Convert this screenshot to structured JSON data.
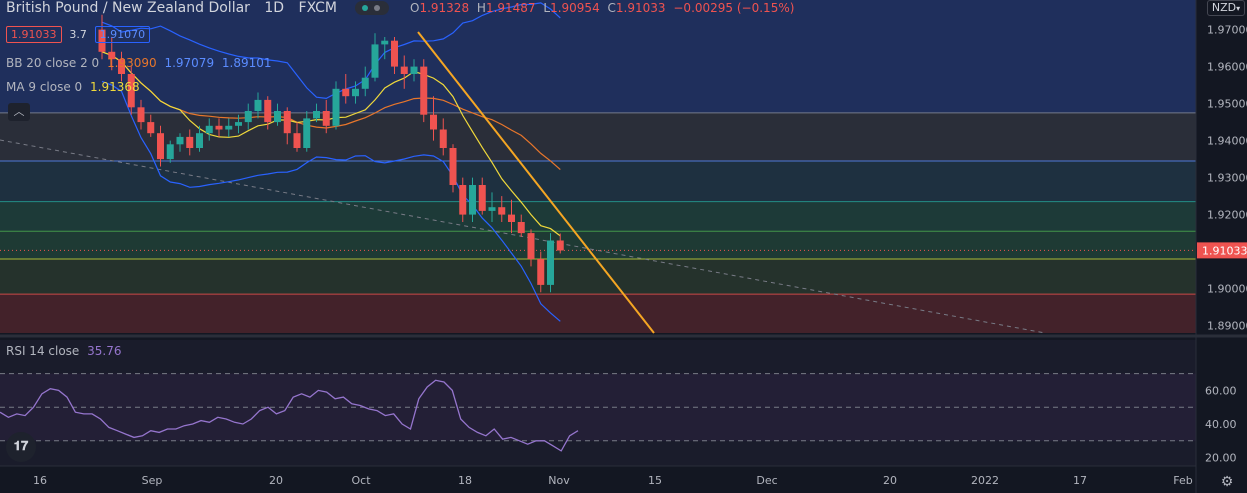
{
  "header": {
    "symbol": "British Pound / New Zealand Dollar",
    "interval": "1D",
    "exchange": "FXCM",
    "ohlc": {
      "o_label": "O",
      "o": "1.91328",
      "h_label": "H",
      "h": "1.91487",
      "l_label": "L",
      "l": "1.90954",
      "c_label": "C",
      "c": "1.91033",
      "chg": "−0.00295 (−0.15%)"
    },
    "sell_price": "1.91033",
    "spread": "3.7",
    "buy_price": "1.91070",
    "currency": "NZD"
  },
  "indicators": {
    "bb": {
      "label": "BB 20 close 2 0",
      "basis": "1.93090",
      "upper": "1.97079",
      "lower": "1.89101"
    },
    "ma": {
      "label": "MA 9 close 0",
      "value": "1.91368"
    },
    "rsi": {
      "label": "RSI 14 close",
      "value": "35.76"
    }
  },
  "colors": {
    "up": "#26a69a",
    "down": "#ef5350",
    "bb_band": "#2962ff",
    "bb_basis": "#e8762b",
    "ma": "#f0d93b",
    "trend": "#f5a623",
    "rsi": "#9575cd"
  },
  "chart_data": {
    "type": "candlestick",
    "x_ticks": [
      "16",
      "Sep",
      "20",
      "Oct",
      "18",
      "Nov",
      "15",
      "Dec",
      "20",
      "2022",
      "17",
      "Feb"
    ],
    "y_ticks": [
      "1.97000",
      "1.96000",
      "1.95000",
      "1.94000",
      "1.93000",
      "1.92000",
      "1.91000",
      "1.90000",
      "1.89000"
    ],
    "last_price": "1.91033",
    "ylim": [
      1.888,
      1.978
    ],
    "candles": [
      [
        1.97,
        1.974,
        1.962,
        1.964
      ],
      [
        1.964,
        1.968,
        1.959,
        1.962
      ],
      [
        1.962,
        1.964,
        1.956,
        1.958
      ],
      [
        1.958,
        1.96,
        1.947,
        1.949
      ],
      [
        1.949,
        1.951,
        1.943,
        1.945
      ],
      [
        1.945,
        1.947,
        1.941,
        1.942
      ],
      [
        1.942,
        1.944,
        1.933,
        1.935
      ],
      [
        1.935,
        1.94,
        1.934,
        1.939
      ],
      [
        1.939,
        1.942,
        1.937,
        1.941
      ],
      [
        1.941,
        1.943,
        1.936,
        1.938
      ],
      [
        1.938,
        1.944,
        1.937,
        1.942
      ],
      [
        1.942,
        1.946,
        1.94,
        1.944
      ],
      [
        1.944,
        1.946,
        1.941,
        1.943
      ],
      [
        1.943,
        1.946,
        1.941,
        1.944
      ],
      [
        1.944,
        1.947,
        1.942,
        1.945
      ],
      [
        1.945,
        1.95,
        1.943,
        1.948
      ],
      [
        1.948,
        1.953,
        1.946,
        1.951
      ],
      [
        1.951,
        1.952,
        1.943,
        1.945
      ],
      [
        1.945,
        1.95,
        1.944,
        1.948
      ],
      [
        1.948,
        1.949,
        1.939,
        1.942
      ],
      [
        1.942,
        1.945,
        1.937,
        1.938
      ],
      [
        1.938,
        1.948,
        1.937,
        1.946
      ],
      [
        1.946,
        1.95,
        1.945,
        1.948
      ],
      [
        1.948,
        1.951,
        1.942,
        1.944
      ],
      [
        1.944,
        1.956,
        1.943,
        1.954
      ],
      [
        1.954,
        1.958,
        1.95,
        1.952
      ],
      [
        1.952,
        1.956,
        1.95,
        1.954
      ],
      [
        1.954,
        1.96,
        1.952,
        1.957
      ],
      [
        1.957,
        1.969,
        1.956,
        1.966
      ],
      [
        1.966,
        1.968,
        1.962,
        1.967
      ],
      [
        1.967,
        1.968,
        1.958,
        1.96
      ],
      [
        1.96,
        1.963,
        1.954,
        1.958
      ],
      [
        1.958,
        1.962,
        1.956,
        1.96
      ],
      [
        1.96,
        1.962,
        1.945,
        1.947
      ],
      [
        1.947,
        1.952,
        1.94,
        1.943
      ],
      [
        1.943,
        1.946,
        1.936,
        1.938
      ],
      [
        1.938,
        1.939,
        1.926,
        1.928
      ],
      [
        1.928,
        1.93,
        1.918,
        1.92
      ],
      [
        1.92,
        1.93,
        1.918,
        1.928
      ],
      [
        1.928,
        1.93,
        1.92,
        1.921
      ],
      [
        1.921,
        1.926,
        1.918,
        1.922
      ],
      [
        1.922,
        1.925,
        1.918,
        1.92
      ],
      [
        1.92,
        1.924,
        1.915,
        1.918
      ],
      [
        1.918,
        1.92,
        1.914,
        1.915
      ],
      [
        1.915,
        1.916,
        1.906,
        1.908
      ],
      [
        1.908,
        1.91,
        1.899,
        1.901
      ],
      [
        1.901,
        1.915,
        1.899,
        1.913
      ],
      [
        1.913,
        1.9149,
        1.9095,
        1.9103
      ]
    ],
    "rsi_ticks": [
      "60.00",
      "40.00",
      "20.00"
    ],
    "rsi_lim": [
      15,
      90
    ],
    "rsi": [
      47,
      44,
      46,
      45,
      50,
      58,
      61,
      60,
      56,
      47,
      46,
      46,
      43,
      38,
      36,
      34,
      32,
      33,
      36,
      35,
      37,
      37,
      39,
      40,
      42,
      41,
      44,
      43,
      41,
      40,
      43,
      48,
      50,
      46,
      48,
      56,
      58,
      56,
      60,
      59,
      55,
      56,
      52,
      51,
      49,
      48,
      45,
      46,
      40,
      37,
      55,
      62,
      66,
      65,
      60,
      43,
      38,
      35,
      33,
      37,
      31,
      32,
      30,
      28,
      30,
      30,
      27,
      24,
      33,
      36
    ]
  }
}
